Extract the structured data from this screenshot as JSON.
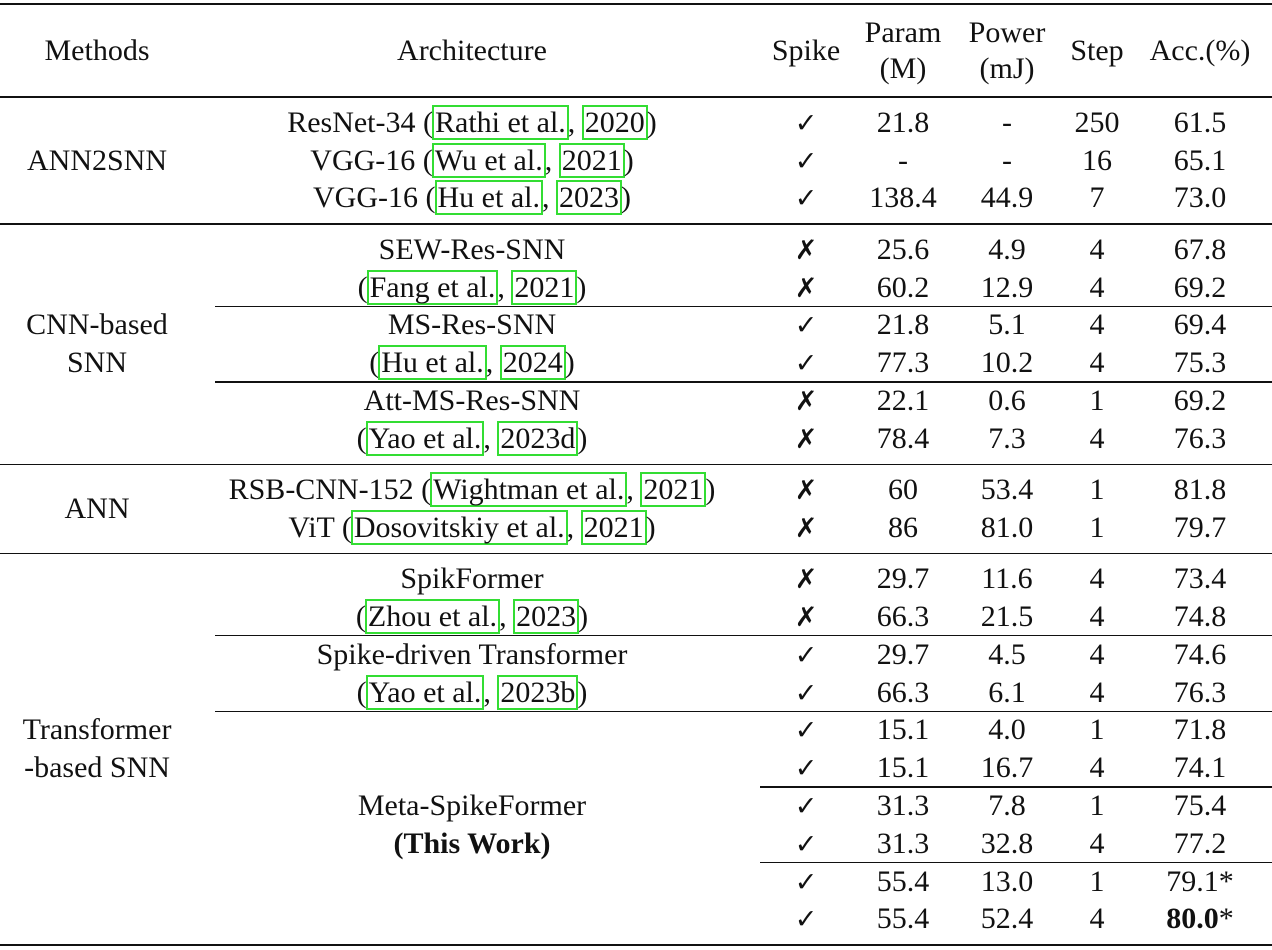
{
  "header": [
    [
      "Methods"
    ],
    [
      "Architecture"
    ],
    [
      "Spike"
    ],
    [
      "Param",
      "(M)"
    ],
    [
      "Power",
      "(mJ)"
    ],
    [
      "Step"
    ],
    [
      "Acc.(%)"
    ]
  ],
  "sections": [
    {
      "method": [
        "ANN2SNN"
      ],
      "blocks": [
        {
          "architecture": [
            [
              "ResNet-34 (",
              {
                "cite": "Rathi et al."
              },
              ", ",
              {
                "cite": "2020"
              },
              ")"
            ],
            [
              "VGG-16 (",
              {
                "cite": "Wu et al."
              },
              ", ",
              {
                "cite": "2021"
              },
              ")"
            ],
            [
              "VGG-16 (",
              {
                "cite": "Hu et al."
              },
              ", ",
              {
                "cite": "2023"
              },
              ")"
            ]
          ],
          "groups": [
            [
              [
                "✓",
                "21.8",
                "-",
                "250",
                "61.5"
              ],
              [
                "✓",
                "-",
                "-",
                "16",
                "65.1"
              ],
              [
                "✓",
                "138.4",
                "44.9",
                "7",
                "73.0"
              ]
            ]
          ]
        }
      ]
    },
    {
      "method": [
        "CNN-based",
        "SNN"
      ],
      "blocks": [
        {
          "architecture": [
            [
              "SEW-Res-SNN"
            ],
            [
              "(",
              {
                "cite": "Fang et al."
              },
              ", ",
              {
                "cite": "2021"
              },
              ")"
            ]
          ],
          "groups": [
            [
              [
                "✗",
                "25.6",
                "4.9",
                "4",
                "67.8"
              ],
              [
                "✗",
                "60.2",
                "12.9",
                "4",
                "69.2"
              ]
            ]
          ]
        },
        {
          "architecture": [
            [
              "MS-Res-SNN"
            ],
            [
              "(",
              {
                "cite": "Hu et al."
              },
              ", ",
              {
                "cite": "2024"
              },
              ")"
            ]
          ],
          "groups": [
            [
              [
                "✓",
                "21.8",
                "5.1",
                "4",
                "69.4"
              ],
              [
                "✓",
                "77.3",
                "10.2",
                "4",
                "75.3"
              ]
            ]
          ]
        },
        {
          "architecture": [
            [
              "Att-MS-Res-SNN"
            ],
            [
              "(",
              {
                "cite": "Yao et al."
              },
              ", ",
              {
                "cite": "2023d"
              },
              ")"
            ]
          ],
          "groups": [
            [
              [
                "✗",
                "22.1",
                "0.6",
                "1",
                "69.2"
              ],
              [
                "✗",
                "78.4",
                "7.3",
                "4",
                "76.3"
              ]
            ]
          ]
        }
      ]
    },
    {
      "method": [
        "ANN"
      ],
      "blocks": [
        {
          "architecture": [
            [
              "RSB-CNN-152 (",
              {
                "cite": "Wightman et al."
              },
              ", ",
              {
                "cite": "2021"
              },
              ")"
            ],
            [
              "ViT (",
              {
                "cite": "Dosovitskiy et al."
              },
              ", ",
              {
                "cite": "2021"
              },
              ")"
            ]
          ],
          "groups": [
            [
              [
                "✗",
                "60",
                "53.4",
                "1",
                "81.8"
              ],
              [
                "✗",
                "86",
                "81.0",
                "1",
                "79.7"
              ]
            ]
          ]
        }
      ]
    },
    {
      "method": [
        "Transformer",
        "-based SNN"
      ],
      "blocks": [
        {
          "architecture": [
            [
              "SpikFormer"
            ],
            [
              "(",
              {
                "cite": "Zhou et al."
              },
              ", ",
              {
                "cite": "2023"
              },
              ")"
            ]
          ],
          "groups": [
            [
              [
                "✗",
                "29.7",
                "11.6",
                "4",
                "73.4"
              ],
              [
                "✗",
                "66.3",
                "21.5",
                "4",
                "74.8"
              ]
            ]
          ]
        },
        {
          "architecture": [
            [
              "Spike-driven Transformer"
            ],
            [
              "(",
              {
                "cite": "Yao et al."
              },
              ", ",
              {
                "cite": "2023b"
              },
              ")"
            ]
          ],
          "groups": [
            [
              [
                "✓",
                "29.7",
                "4.5",
                "4",
                "74.6"
              ],
              [
                "✓",
                "66.3",
                "6.1",
                "4",
                "76.3"
              ]
            ]
          ]
        },
        {
          "architecture": [
            [
              "Meta-SpikeFormer"
            ],
            [
              {
                "bold": "(This Work)"
              }
            ]
          ],
          "groups": [
            [
              [
                "✓",
                "15.1",
                "4.0",
                "1",
                "71.8"
              ],
              [
                "✓",
                "15.1",
                "16.7",
                "4",
                "74.1"
              ]
            ],
            [
              [
                "✓",
                "31.3",
                "7.8",
                "1",
                "75.4"
              ],
              [
                "✓",
                "31.3",
                "32.8",
                "4",
                "77.2"
              ]
            ],
            [
              [
                "✓",
                "55.4",
                "13.0",
                "1",
                "79.1*"
              ],
              [
                "✓",
                "55.4",
                "52.4",
                "4",
                {
                  "bold": "80.0",
                  "rest": "*"
                }
              ]
            ]
          ]
        }
      ]
    }
  ]
}
